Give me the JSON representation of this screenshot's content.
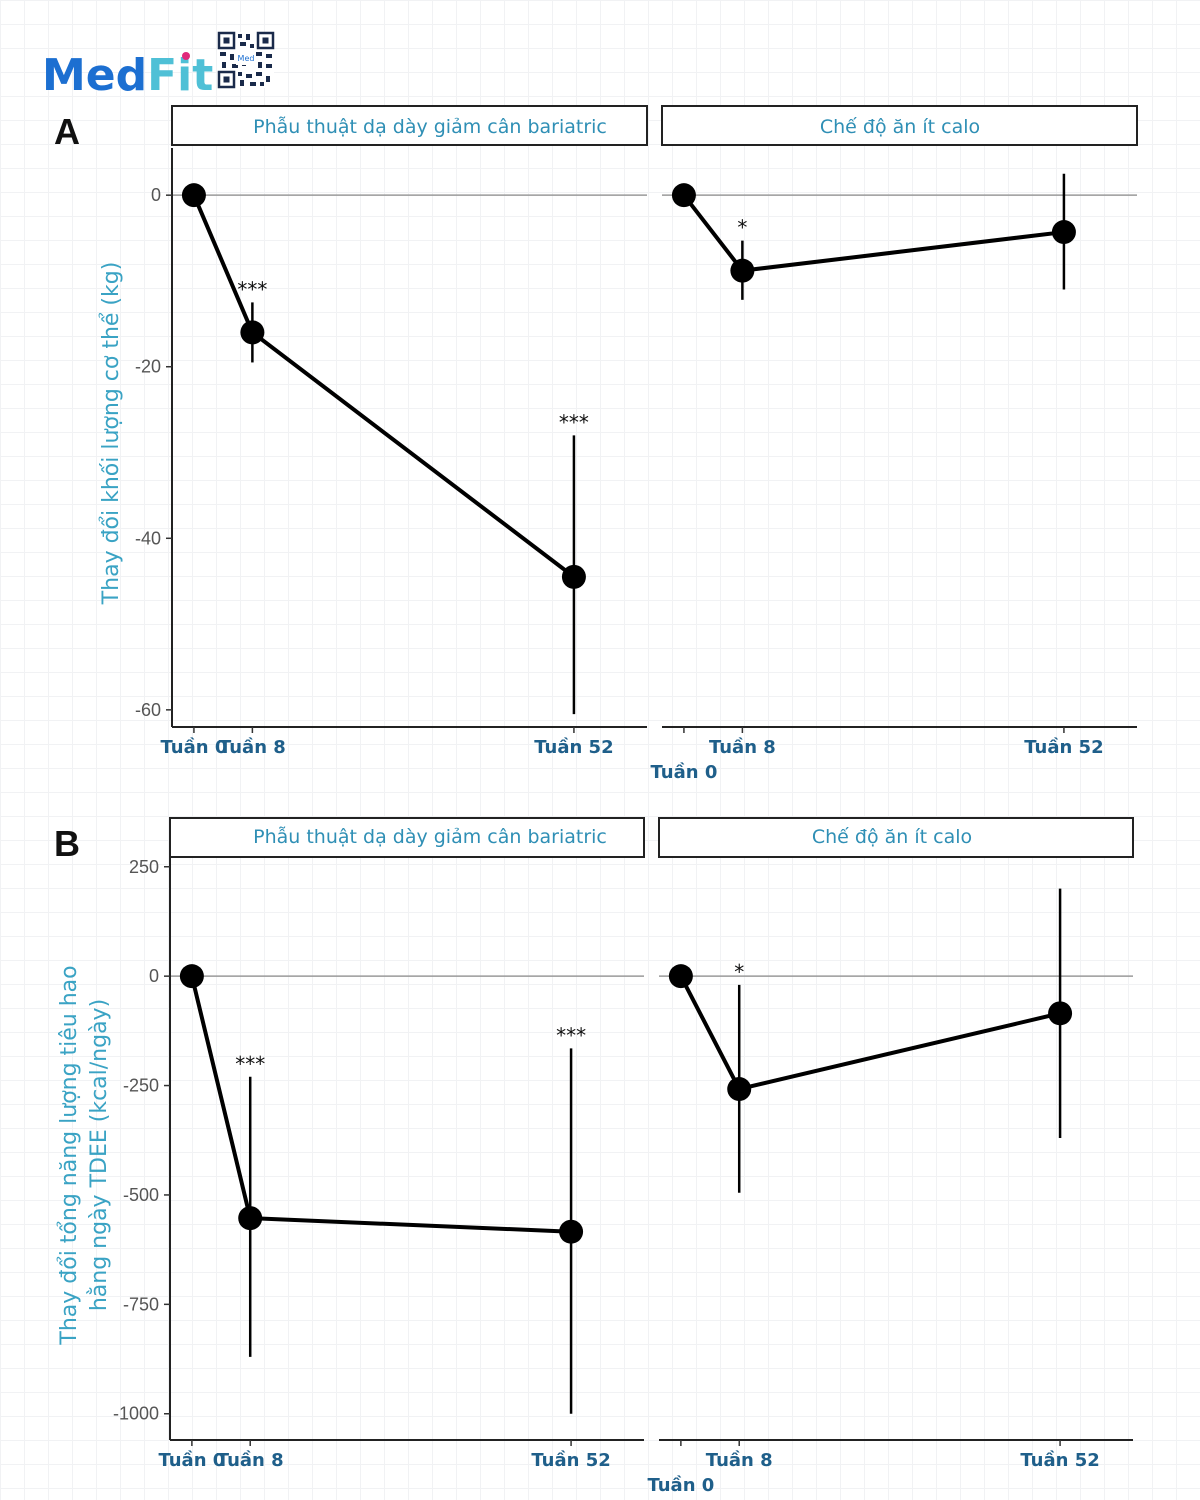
{
  "logo": {
    "med": "Med",
    "fit": "Fit",
    "med_color": "#1c6fd1",
    "fit_color": "#4fc0d6",
    "accent_color": "#e0297a"
  },
  "colors": {
    "strip_text": "#2f8fb5",
    "ylabel": "#3aa3c4",
    "xtick": "#1f5f8a",
    "ytick": "#555555",
    "line": "#000000",
    "zero_line": "#9a9a9a"
  },
  "chart_data": [
    {
      "panel": "A",
      "type": "line",
      "ylabel": "Thay đổi khối lượng cơ thể (kg)",
      "ylim": [
        -62,
        5.5
      ],
      "yticks": [
        {
          "value": 0,
          "label": "0"
        },
        {
          "value": -20,
          "label": "-20"
        },
        {
          "value": -40,
          "label": "-40"
        },
        {
          "value": -60,
          "label": "-60"
        }
      ],
      "facets": [
        {
          "title": "Phẫu thuật dạ dày giảm cân bariatric",
          "xlim": [
            -3,
            62
          ],
          "x": [
            0,
            8,
            52
          ],
          "xlabels": [
            "Tuần 0",
            "Tuần 8",
            "Tuần 52"
          ],
          "values": [
            0,
            -16,
            -44.5
          ],
          "err_low": [
            0,
            -19.5,
            -60.5
          ],
          "err_high": [
            0,
            -12.5,
            -28
          ],
          "sig": [
            "",
            "***",
            "***"
          ]
        },
        {
          "title": "Chế độ ăn ít calo",
          "xlim": [
            -3,
            62
          ],
          "x": [
            0,
            8,
            52
          ],
          "xlabels": [
            "Tuần 0",
            "Tuần 8",
            "Tuần 52"
          ],
          "values": [
            0,
            -8.8,
            -4.3
          ],
          "err_low": [
            0,
            -12.2,
            -11
          ],
          "err_high": [
            0,
            -5.3,
            2.5
          ],
          "sig": [
            "",
            "*",
            ""
          ]
        }
      ]
    },
    {
      "panel": "B",
      "type": "line",
      "ylabel": "Thay đổi tổng năng lượng tiêu hao hằng ngày TDEE (kcal/ngày)",
      "ylabel_lines": [
        "Thay đổi tổng năng lượng tiêu hao",
        "hằng ngày TDEE (kcal/ngày)"
      ],
      "ylim": [
        -1060,
        270
      ],
      "yticks": [
        {
          "value": 250,
          "label": "250"
        },
        {
          "value": 0,
          "label": "0"
        },
        {
          "value": -250,
          "label": "-250"
        },
        {
          "value": -500,
          "label": "-500"
        },
        {
          "value": -750,
          "label": "-750"
        },
        {
          "value": -1000,
          "label": "-1000"
        }
      ],
      "facets": [
        {
          "title": "Phẫu thuật dạ dày giảm cân bariatric",
          "xlim": [
            -3,
            62
          ],
          "x": [
            0,
            8,
            52
          ],
          "xlabels": [
            "Tuần 0",
            "Tuần 8",
            "Tuần 52"
          ],
          "values": [
            0,
            -553,
            -584
          ],
          "err_low": [
            0,
            -870,
            -1000
          ],
          "err_high": [
            0,
            -230,
            -165
          ],
          "sig": [
            "",
            "***",
            "***"
          ]
        },
        {
          "title": "Chế độ ăn ít calo",
          "xlim": [
            -3,
            62
          ],
          "x": [
            0,
            8,
            52
          ],
          "xlabels": [
            "Tuần 0",
            "Tuần 8",
            "Tuần 52"
          ],
          "values": [
            0,
            -258,
            -85
          ],
          "err_low": [
            0,
            -495,
            -370
          ],
          "err_high": [
            0,
            -20,
            200
          ],
          "sig": [
            "",
            "*",
            ""
          ]
        }
      ]
    }
  ]
}
